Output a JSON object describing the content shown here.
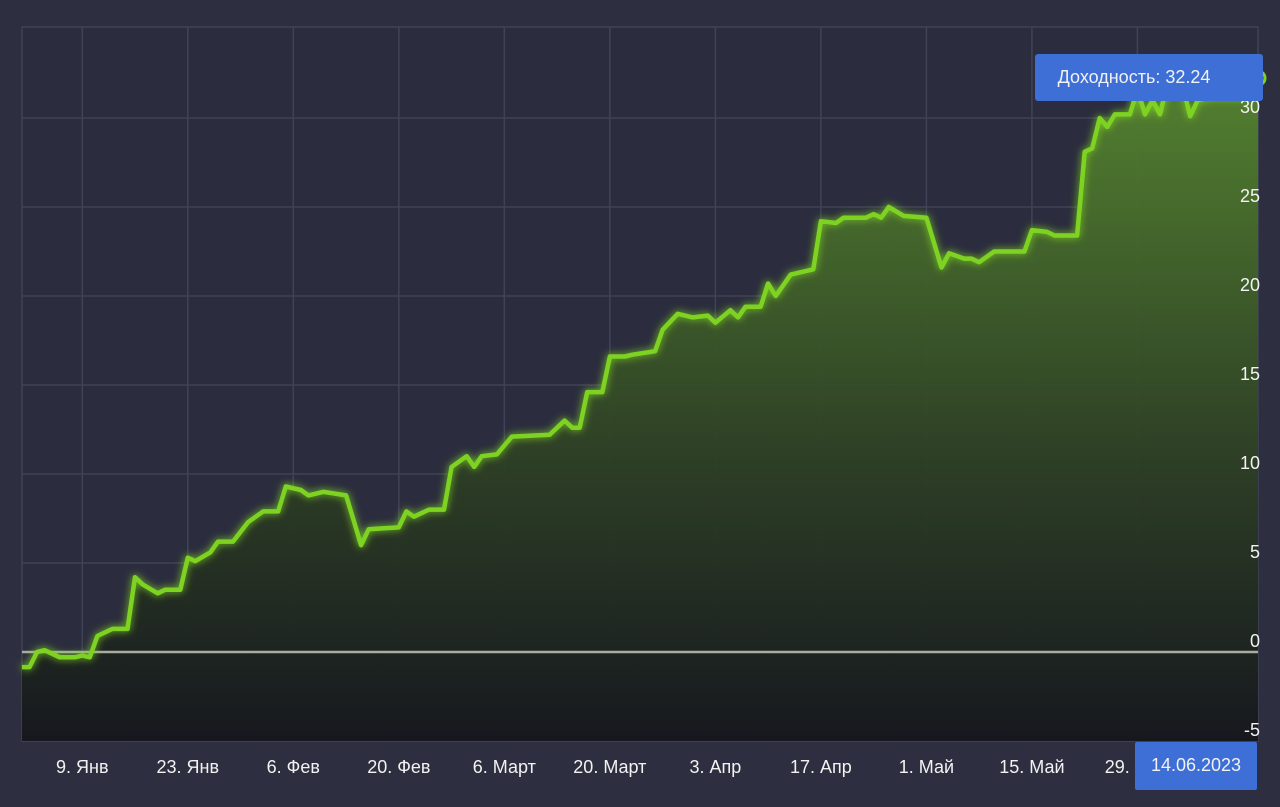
{
  "chart_data": {
    "type": "area",
    "x": [
      1,
      2,
      3,
      4,
      6,
      8,
      9,
      10,
      11,
      13,
      15,
      16,
      17,
      19,
      20,
      22,
      23,
      24,
      26,
      27,
      29,
      31,
      33,
      35,
      36,
      38,
      39,
      41,
      44,
      46,
      47,
      51,
      52,
      53,
      55,
      57,
      58,
      60,
      61,
      62,
      64,
      66,
      71,
      73,
      74,
      75,
      76,
      78,
      79,
      81,
      82,
      85,
      86,
      88,
      90,
      92,
      93,
      95,
      96,
      97,
      99,
      100,
      101,
      103,
      106,
      107,
      109,
      110,
      113,
      114,
      115,
      116,
      118,
      121,
      123,
      124,
      126,
      127,
      128,
      130,
      134,
      135,
      137,
      138,
      141,
      142,
      143,
      144,
      145,
      146,
      148,
      149,
      150,
      151,
      152,
      153,
      155,
      156,
      157,
      159,
      163,
      164,
      165
    ],
    "values": [
      -0.85,
      -0.85,
      0,
      0.1,
      -0.3,
      -0.3,
      -0.2,
      -0.3,
      0.9,
      1.3,
      1.3,
      4.2,
      3.8,
      3.3,
      3.5,
      3.5,
      5.3,
      5.1,
      5.6,
      6.2,
      6.2,
      7.3,
      7.9,
      7.9,
      9.3,
      9.1,
      8.8,
      9.0,
      8.8,
      6.0,
      6.9,
      7.0,
      7.9,
      7.6,
      8.0,
      8.0,
      10.4,
      11.0,
      10.4,
      11.0,
      11.1,
      12.1,
      12.2,
      13.0,
      12.6,
      12.6,
      14.6,
      14.6,
      16.6,
      16.6,
      16.7,
      16.9,
      18.1,
      19.0,
      18.8,
      18.9,
      18.5,
      19.2,
      18.8,
      19.4,
      19.4,
      20.7,
      20.0,
      21.2,
      21.5,
      24.2,
      24.1,
      24.4,
      24.4,
      24.6,
      24.4,
      25.0,
      24.5,
      24.4,
      21.6,
      22.4,
      22.1,
      22.1,
      21.9,
      22.5,
      22.5,
      23.7,
      23.6,
      23.4,
      23.4,
      28.1,
      28.3,
      30.0,
      29.5,
      30.2,
      30.2,
      31.6,
      30.2,
      31.0,
      30.2,
      32.0,
      31.8,
      30.1,
      31.0,
      31.2,
      31.2,
      32.4,
      32.24
    ],
    "color": "#7ed321",
    "xlim": [
      1,
      165
    ],
    "xticks": [
      {
        "value": 9,
        "label": "9. Янв"
      },
      {
        "value": 23,
        "label": "23. Янв"
      },
      {
        "value": 37,
        "label": "6. Фев"
      },
      {
        "value": 51,
        "label": "20. Фев"
      },
      {
        "value": 65,
        "label": "6. Март"
      },
      {
        "value": 79,
        "label": "20. Март"
      },
      {
        "value": 93,
        "label": "3. Апр"
      },
      {
        "value": 107,
        "label": "17. Апр"
      },
      {
        "value": 121,
        "label": "1. Май"
      },
      {
        "value": 135,
        "label": "15. Май"
      },
      {
        "value": 149,
        "label": "29. Май"
      }
    ],
    "ylim": [
      -5,
      35
    ],
    "yticks": [
      -5,
      0,
      5,
      10,
      15,
      20,
      25,
      30
    ],
    "grid": true,
    "tooltip": "Доходность: 32.24",
    "tooltip_date": "14.06.2023"
  }
}
